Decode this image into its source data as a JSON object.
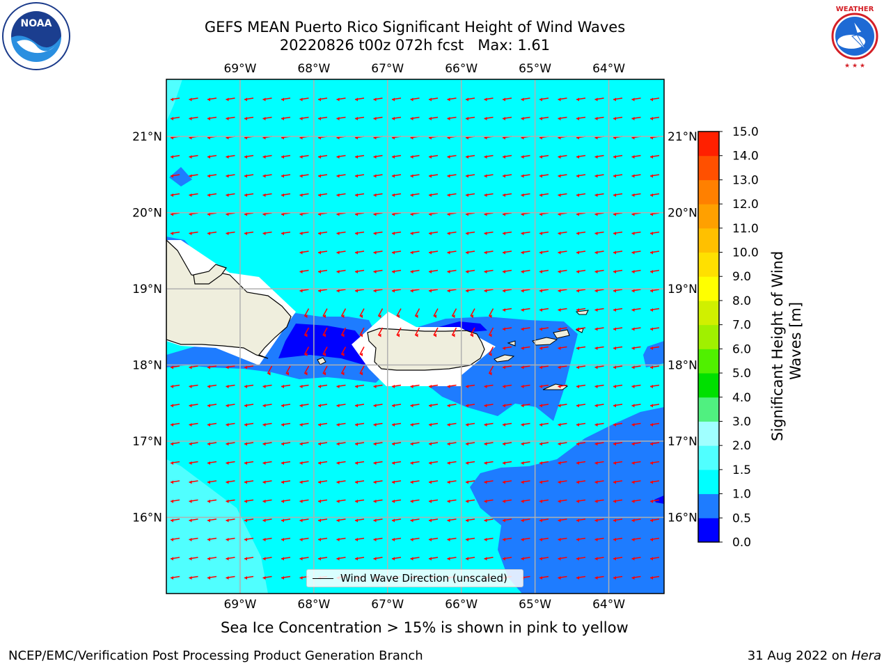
{
  "header": {
    "title_line1": "GEFS MEAN Puerto Rico Significant Height of Wind Waves",
    "title_line2": "20220826 t00z 072h fcst   Max: 1.61"
  },
  "logos": {
    "left": {
      "text": "NOAA",
      "icon": "noaa-logo-icon"
    },
    "right": {
      "text": "NATIONAL WEATHER SERVICE",
      "icon": "nws-logo-icon"
    }
  },
  "axes": {
    "lon_labels": [
      "69°W",
      "68°W",
      "67°W",
      "66°W",
      "65°W",
      "64°W"
    ],
    "lon_values": [
      -69,
      -68,
      -67,
      -66,
      -65,
      -64
    ],
    "lat_labels": [
      "21°N",
      "20°N",
      "19°N",
      "18°N",
      "17°N",
      "16°N"
    ],
    "lat_values": [
      21,
      20,
      19,
      18,
      17,
      16
    ],
    "lon_range": [
      -70,
      -63.25
    ],
    "lat_range": [
      15,
      21.75
    ]
  },
  "legend": {
    "label": "Wind Wave Direction (unscaled)"
  },
  "colorbar": {
    "title": "Significant Height of Wind Waves [m]",
    "ticks": [
      "15.0",
      "14.0",
      "13.0",
      "12.0",
      "11.0",
      "10.0",
      "9.0",
      "8.0",
      "7.0",
      "6.0",
      "5.0",
      "4.0",
      "3.0",
      "2.0",
      "1.5",
      "1.0",
      "0.5",
      "0.0"
    ],
    "levels": [
      0,
      0.5,
      1.0,
      1.5,
      2.0,
      3.0,
      4.0,
      5.0,
      6.0,
      7.0,
      8.0,
      9.0,
      10.0,
      11.0,
      12.0,
      13.0,
      14.0,
      15.0
    ],
    "colors": [
      "#0000ff",
      "#1e7cff",
      "#00ffff",
      "#50ffff",
      "#a0ffff",
      "#50f080",
      "#00e000",
      "#50f000",
      "#a0f000",
      "#d0f000",
      "#ffff00",
      "#ffe000",
      "#ffc000",
      "#ffa000",
      "#ff8000",
      "#ff5000",
      "#ff2000"
    ]
  },
  "map": {
    "ocean_color": "#00ffff",
    "land_color": "#efeedd",
    "arrow_color": "#ff0000",
    "shallow_color": "#1e7cff",
    "calm_color": "#0000ff",
    "light_zone_color": "#50ffff"
  },
  "notes": {
    "sea_ice": "Sea Ice Concentration > 15% is shown in pink to yellow"
  },
  "footer": {
    "left": "NCEP/EMC/Verification Post Processing Product Generation Branch",
    "right_date": "31 Aug 2022 on ",
    "right_machine": "Hera"
  }
}
